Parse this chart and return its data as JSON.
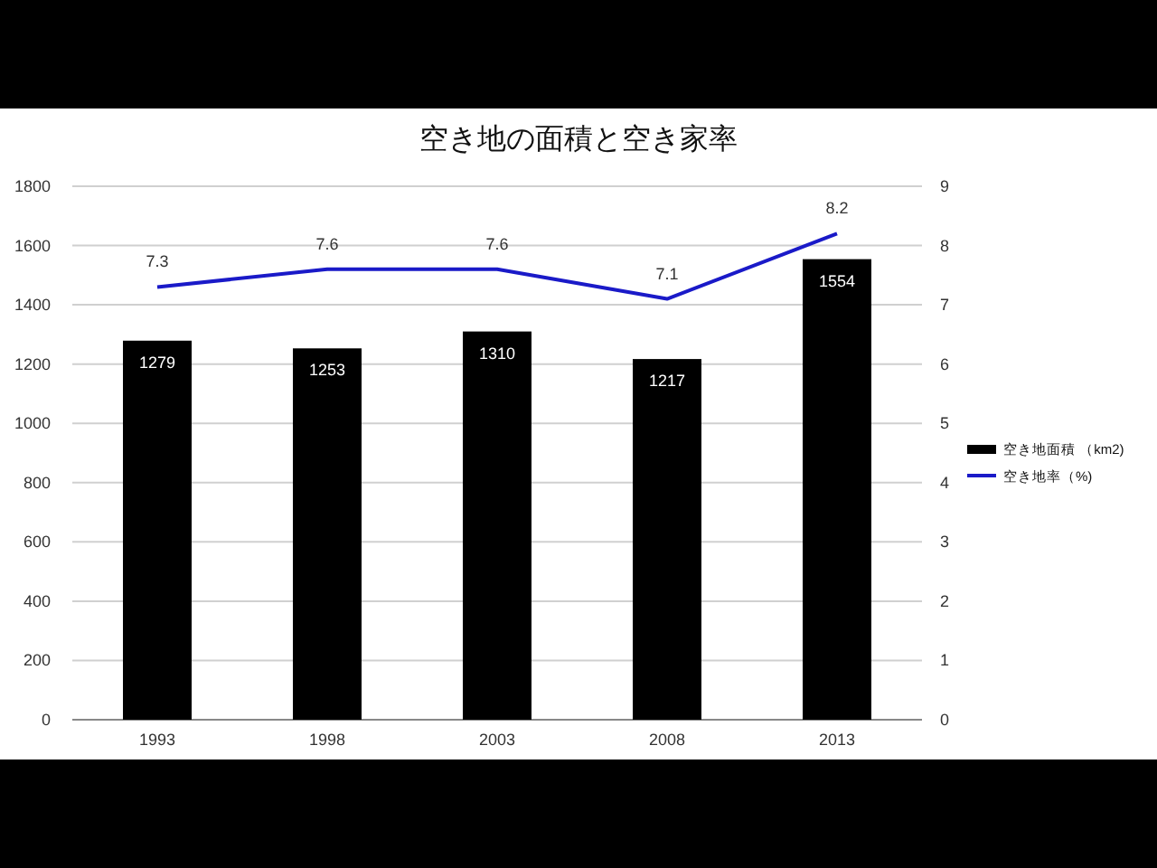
{
  "chart_data": {
    "type": "bar",
    "title": "空き地の面積と空き家率",
    "categories": [
      "1993",
      "1998",
      "2003",
      "2008",
      "2013"
    ],
    "series": [
      {
        "name": "空き地面積 （km2)",
        "color": "#000000",
        "values": [
          1279,
          1253,
          1310,
          1217,
          1554
        ]
      },
      {
        "name": "空き地率（%)",
        "type": "line",
        "axis": "y2",
        "color": "#1a1ac8",
        "values": [
          7.3,
          7.6,
          7.6,
          7.1,
          8.2
        ]
      }
    ],
    "ylim": [
      0,
      1800
    ],
    "yticks": [
      0,
      200,
      400,
      600,
      800,
      1000,
      1200,
      1400,
      1600,
      1800
    ],
    "y2lim": [
      0,
      9
    ],
    "y2ticks": [
      0,
      1,
      2,
      3,
      4,
      5,
      6,
      7,
      8,
      9
    ],
    "data_labels": true,
    "grid": "y",
    "legend": "right",
    "marker": "none",
    "line_style": "solid"
  }
}
